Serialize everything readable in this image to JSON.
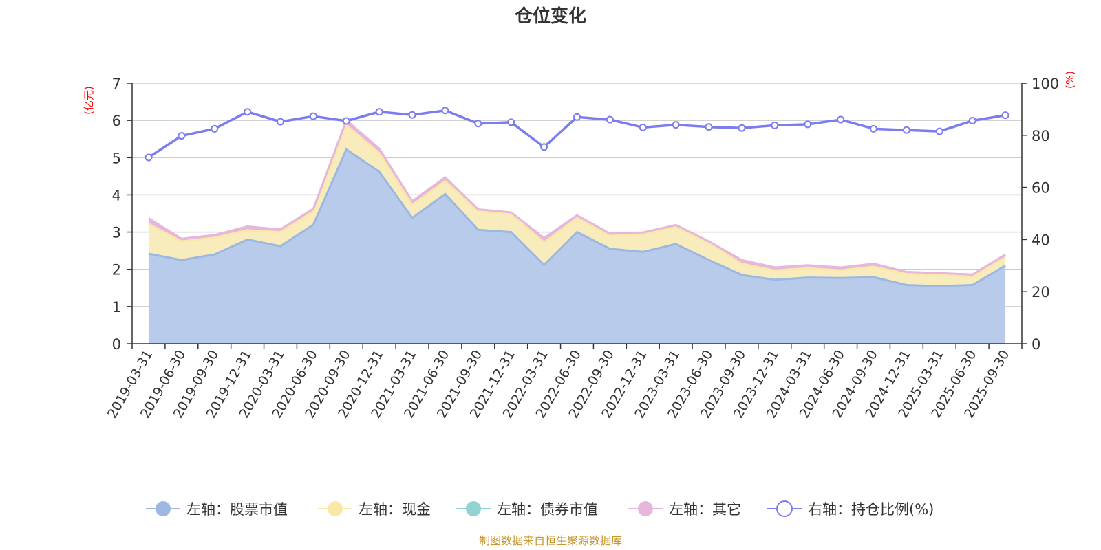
{
  "colors": {
    "stock": "#9cb7e2",
    "stock_fill": "#b8cbea",
    "cash": "#f9e8a6",
    "cash_fill": "#f8ecbd",
    "bond": "#8fd3d3",
    "other": "#e6b6dc",
    "ratio": "#7a7cf0",
    "grid": "#cccccc",
    "axis": "#333333",
    "unit": "#ff0000",
    "footer": "#c8962c"
  },
  "chart_data": {
    "type": "area",
    "title": "仓位变化",
    "left_axis_unit": "(亿元)",
    "right_axis_unit": "(%)",
    "left_ylim": [
      0,
      7
    ],
    "left_ticks": [
      0,
      1,
      2,
      3,
      4,
      5,
      6,
      7
    ],
    "right_ylim": [
      0,
      100
    ],
    "right_ticks": [
      0,
      20,
      40,
      60,
      80,
      100
    ],
    "grid": true,
    "legend_position": "bottom",
    "categories": [
      "2019-03-31",
      "2019-06-30",
      "2019-09-30",
      "2019-12-31",
      "2020-03-31",
      "2020-06-30",
      "2020-09-30",
      "2020-12-31",
      "2021-03-31",
      "2021-06-30",
      "2021-09-30",
      "2021-12-31",
      "2022-03-31",
      "2022-06-30",
      "2022-09-30",
      "2022-12-31",
      "2023-03-31",
      "2023-06-30",
      "2023-09-30",
      "2023-12-31",
      "2024-03-31",
      "2024-06-30",
      "2024-09-30",
      "2024-12-31",
      "2025-03-31",
      "2025-06-30",
      "2025-09-30"
    ],
    "series": [
      {
        "name": "左轴：股票市值",
        "axis": "left",
        "stacked": true,
        "values": [
          2.42,
          2.25,
          2.4,
          2.8,
          2.62,
          3.2,
          5.22,
          4.62,
          3.38,
          4.02,
          3.06,
          3.0,
          2.12,
          3.0,
          2.55,
          2.47,
          2.68,
          2.25,
          1.85,
          1.72,
          1.78,
          1.77,
          1.79,
          1.58,
          1.55,
          1.58,
          2.1
        ]
      },
      {
        "name": "左轴：现金",
        "axis": "left",
        "stacked": true,
        "values": [
          0.8,
          0.5,
          0.45,
          0.25,
          0.38,
          0.35,
          0.65,
          0.5,
          0.35,
          0.35,
          0.5,
          0.48,
          0.6,
          0.38,
          0.35,
          0.47,
          0.45,
          0.45,
          0.3,
          0.25,
          0.25,
          0.2,
          0.28,
          0.3,
          0.3,
          0.22,
          0.22
        ]
      },
      {
        "name": "左轴：债券市值",
        "axis": "left",
        "stacked": true,
        "values": [
          0,
          0,
          0,
          0,
          0,
          0,
          0,
          0,
          0,
          0,
          0,
          0,
          0,
          0,
          0,
          0,
          0,
          0,
          0,
          0,
          0,
          0,
          0,
          0,
          0,
          0,
          0
        ]
      },
      {
        "name": "左轴：其它",
        "axis": "left",
        "stacked": true,
        "values": [
          0.15,
          0.07,
          0.07,
          0.1,
          0.07,
          0.08,
          0.13,
          0.12,
          0.1,
          0.1,
          0.05,
          0.05,
          0.12,
          0.07,
          0.06,
          0.05,
          0.06,
          0.05,
          0.1,
          0.08,
          0.08,
          0.08,
          0.08,
          0.05,
          0.05,
          0.06,
          0.08
        ]
      },
      {
        "name": "右轴：持仓比例(%)",
        "axis": "right",
        "type": "line",
        "values": [
          71.5,
          79.8,
          82.5,
          89.0,
          85.2,
          87.3,
          85.5,
          89.0,
          87.8,
          89.5,
          84.5,
          85.0,
          75.5,
          87.0,
          86.0,
          83.0,
          84.0,
          83.2,
          82.8,
          83.8,
          84.2,
          86.0,
          82.5,
          82.0,
          81.5,
          85.6,
          87.7
        ]
      }
    ]
  },
  "footer": "制图数据来自恒生聚源数据库"
}
